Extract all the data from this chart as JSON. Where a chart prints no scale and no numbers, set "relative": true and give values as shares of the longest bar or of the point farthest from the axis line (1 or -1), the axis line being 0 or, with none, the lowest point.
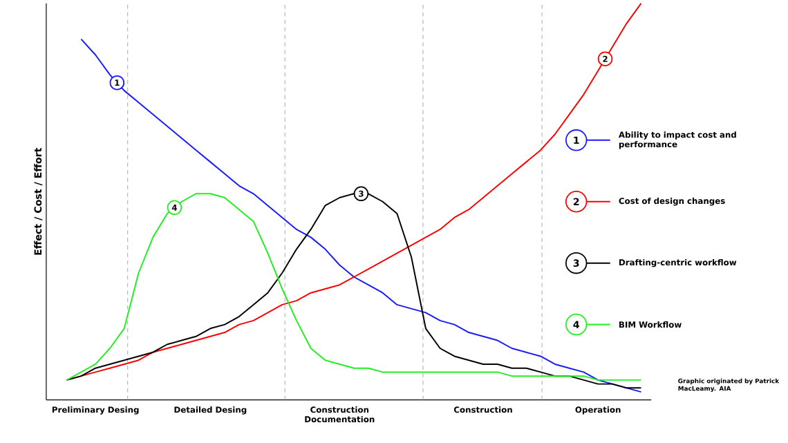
{
  "chart_data": {
    "type": "line",
    "relative": true,
    "ylabel": "Effect / Cost / Effort",
    "categories": [
      null,
      null,
      "Preliminary Desing",
      null,
      null,
      null,
      null,
      null,
      null,
      null,
      "Detailed Desing",
      null,
      null,
      null,
      null,
      null,
      null,
      null,
      null,
      "Construction Documentation",
      null,
      null,
      null,
      null,
      null,
      null,
      null,
      null,
      null,
      "Construction",
      null,
      null,
      null,
      null,
      null,
      null,
      null,
      "Operation",
      null,
      null,
      null
    ],
    "series": [
      {
        "name": "Ability to impact cost and performance",
        "color": "#1a1aff",
        "values": [
          null,
          0.91,
          0.87,
          0.82,
          0.78,
          0.75,
          0.72,
          0.69,
          0.66,
          0.63,
          0.6,
          0.57,
          0.54,
          0.52,
          0.49,
          0.46,
          0.43,
          0.41,
          0.38,
          0.34,
          0.31,
          0.29,
          0.27,
          0.24,
          0.23,
          0.22,
          0.2,
          0.19,
          0.17,
          0.16,
          0.15,
          0.13,
          0.12,
          0.11,
          0.09,
          0.08,
          0.07,
          0.05,
          0.04,
          0.03,
          0.02
        ]
      },
      {
        "name": "Cost of design changes",
        "color": "#ff0000",
        "values": [
          0.05,
          0.06,
          0.07,
          0.08,
          0.09,
          0.1,
          0.12,
          0.13,
          0.14,
          0.15,
          0.16,
          0.17,
          0.19,
          0.2,
          0.22,
          0.24,
          0.25,
          0.27,
          0.28,
          0.29,
          0.31,
          0.33,
          0.35,
          0.37,
          0.39,
          0.41,
          0.43,
          0.46,
          0.48,
          0.51,
          0.54,
          0.57,
          0.6,
          0.63,
          0.67,
          0.72,
          0.77,
          0.83,
          0.89,
          0.95,
          1.0
        ]
      },
      {
        "name": "Drafting-centric workflow",
        "color": "#000000",
        "values": [
          0.05,
          0.06,
          0.08,
          0.09,
          0.1,
          0.11,
          0.12,
          0.14,
          0.15,
          0.16,
          0.18,
          0.19,
          0.21,
          0.24,
          0.27,
          0.32,
          0.38,
          0.43,
          0.49,
          0.51,
          0.52,
          0.52,
          0.5,
          0.47,
          0.36,
          0.18,
          0.13,
          0.11,
          0.1,
          0.09,
          0.09,
          0.08,
          0.08,
          0.07,
          0.06,
          0.06,
          0.05,
          0.04,
          0.04,
          0.03,
          0.03
        ]
      },
      {
        "name": "BIM Workflow",
        "color": "#22ee22",
        "values": [
          0.05,
          0.07,
          0.09,
          0.13,
          0.18,
          0.32,
          0.41,
          0.47,
          0.5,
          0.52,
          0.52,
          0.51,
          0.48,
          0.45,
          0.37,
          0.28,
          0.2,
          0.13,
          0.1,
          0.09,
          0.08,
          0.08,
          0.07,
          0.07,
          0.07,
          0.07,
          0.07,
          0.07,
          0.07,
          0.07,
          0.07,
          0.06,
          0.06,
          0.06,
          0.06,
          0.06,
          0.06,
          0.05,
          0.05,
          0.05,
          0.05
        ]
      }
    ],
    "annotations": [
      "1",
      "2",
      "3",
      "4",
      "Graphic originated by Patrick MacLeamy. AIA"
    ],
    "legend": "right",
    "grid": "x",
    "marker": "none"
  }
}
